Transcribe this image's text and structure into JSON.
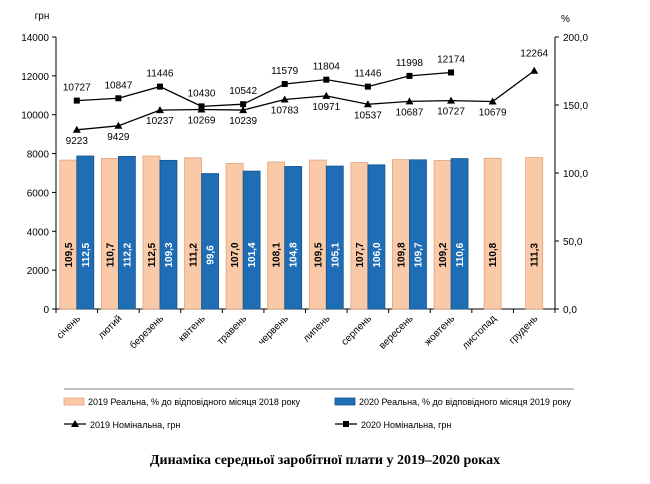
{
  "chart_data": {
    "type": "bar",
    "title": "Динаміка середньої заробітної плати у 2019–2020 роках",
    "left_unit": "грн",
    "right_unit": "%",
    "ylim_left": [
      0,
      14000
    ],
    "ylim_right": [
      0,
      200
    ],
    "left_ticks": [
      "0",
      "2000",
      "4000",
      "6000",
      "8000",
      "10000",
      "12000",
      "14000"
    ],
    "right_ticks": [
      "0,0",
      "50,0",
      "100,0",
      "150,0",
      "200,0"
    ],
    "categories": [
      "січень",
      "лютий",
      "березень",
      "квітень",
      "травень",
      "червень",
      "липень",
      "серпень",
      "вересень",
      "жовтень",
      "листопад",
      "грудень"
    ],
    "bar_series": [
      {
        "name": "2019 Реальна, % до відповідного місяця 2018 року",
        "color": "#f9c9a8",
        "values": [
          109.5,
          110.7,
          112.5,
          111.2,
          107.0,
          108.1,
          109.5,
          107.7,
          109.8,
          109.2,
          110.8,
          111.3
        ],
        "labels": [
          "109,5",
          "110,7",
          "112,5",
          "111,2",
          "107,0",
          "108,1",
          "109,5",
          "107,7",
          "109,8",
          "109,2",
          "110,8",
          "111,3"
        ]
      },
      {
        "name": "2020 Реальна, % до відповідного місяця 2019 року",
        "color": "#1f6db5",
        "values": [
          112.5,
          112.2,
          109.3,
          99.6,
          101.4,
          104.8,
          105.1,
          106.0,
          109.7,
          110.6,
          null,
          null
        ],
        "labels": [
          "112,5",
          "112,2",
          "109,3",
          "99,6",
          "101,4",
          "104,8",
          "105,1",
          "106,0",
          "109,7",
          "110,6",
          "",
          ""
        ]
      }
    ],
    "line_series": [
      {
        "name": "2019 Номінальна, грн",
        "marker": "triangle",
        "values": [
          9223,
          9429,
          10237,
          10269,
          10239,
          10783,
          10971,
          10537,
          10687,
          10727,
          10679,
          12264
        ],
        "labels": [
          "9223",
          "9429",
          "10237",
          "10269",
          "10239",
          "10783",
          "10971",
          "10537",
          "10687",
          "10727",
          "10679",
          "12264"
        ]
      },
      {
        "name": "2020 Номінальна, грн",
        "marker": "square",
        "values": [
          10727,
          10847,
          11446,
          10430,
          10542,
          11579,
          11804,
          11446,
          11998,
          12174,
          null,
          null
        ],
        "labels": [
          "10727",
          "10847",
          "11446",
          "10430",
          "10542",
          "11579",
          "11804",
          "11446",
          "11998",
          "12174",
          "",
          ""
        ]
      }
    ]
  }
}
